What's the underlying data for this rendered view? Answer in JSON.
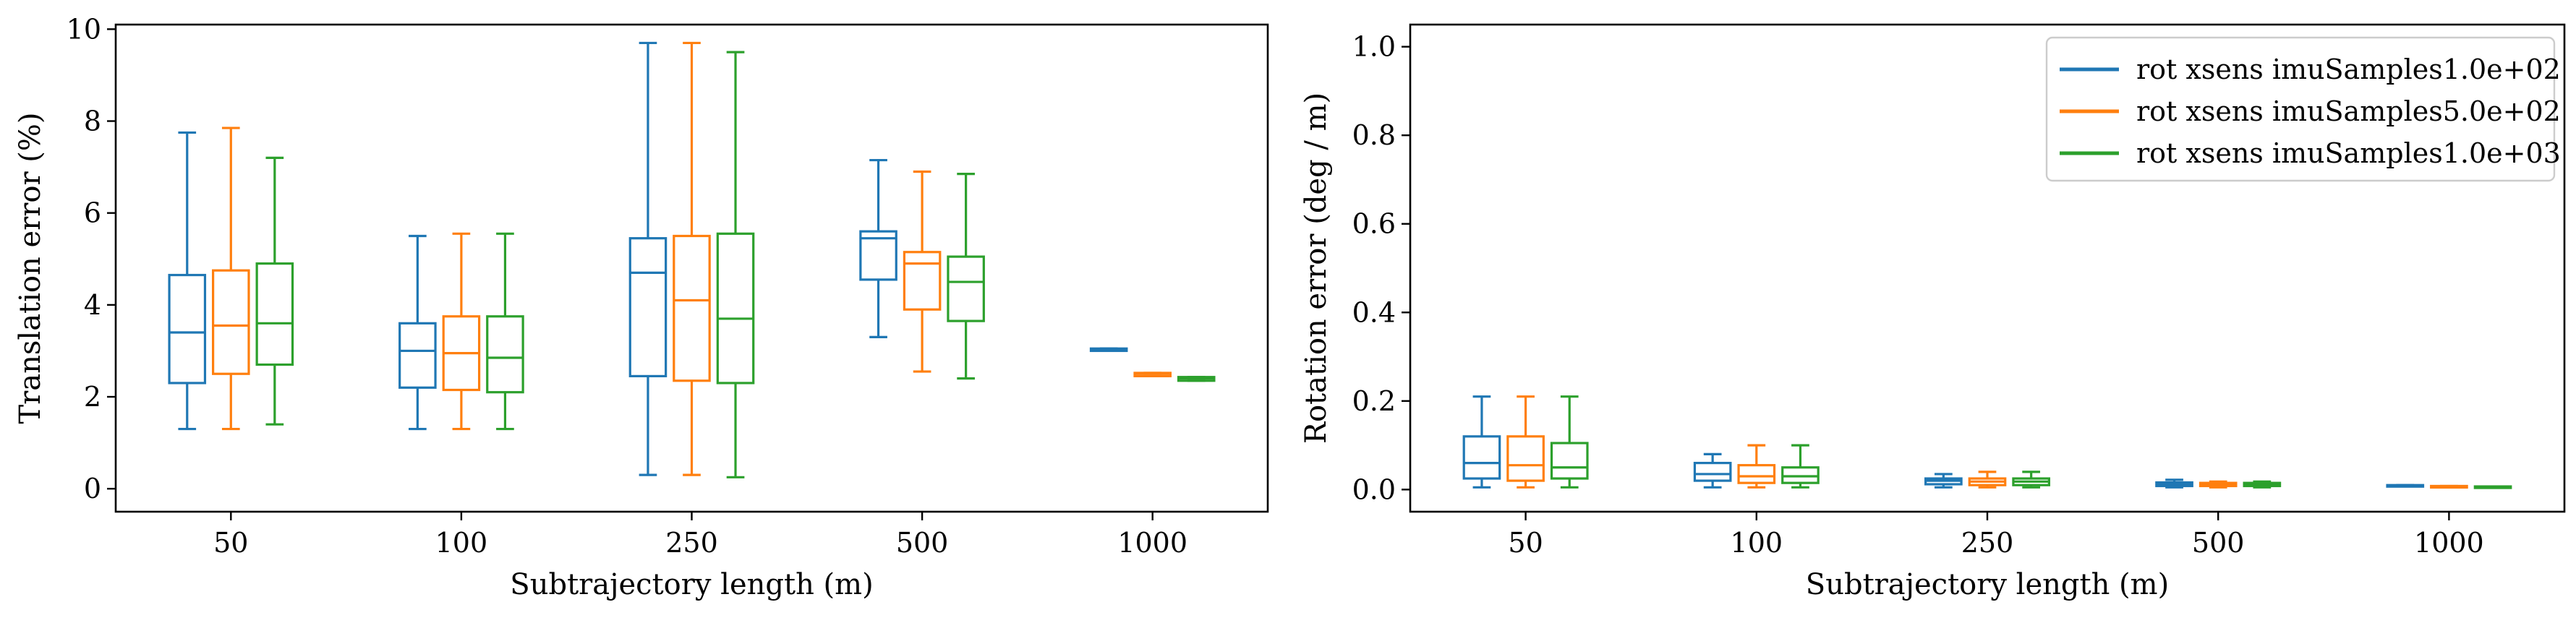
{
  "colors": {
    "series1": "#1f77b4",
    "series2": "#ff7f0e",
    "series3": "#2ca02c"
  },
  "legend": {
    "entries": [
      "rot xsens imuSamples1.0e+02",
      "rot xsens imuSamples5.0e+02",
      "rot xsens imuSamples1.0e+03"
    ],
    "placement": "top-right of right panel"
  },
  "chart_data": [
    {
      "type": "box",
      "title": "",
      "xlabel": "Subtrajectory length (m)",
      "ylabel": "Translation error (%)",
      "ylim": [
        -0.5,
        10.1
      ],
      "yticks": [
        0,
        2,
        4,
        6,
        8,
        10
      ],
      "categories": [
        "50",
        "100",
        "250",
        "500",
        "1000"
      ],
      "grid": false,
      "series": [
        {
          "boxes": [
            {
              "whislo": 1.3,
              "q1": 2.3,
              "med": 3.4,
              "q3": 4.65,
              "whishi": 7.75
            },
            {
              "whislo": 1.3,
              "q1": 2.2,
              "med": 3.0,
              "q3": 3.6,
              "whishi": 5.5
            },
            {
              "whislo": 0.3,
              "q1": 2.45,
              "med": 4.7,
              "q3": 5.45,
              "whishi": 9.7
            },
            {
              "whislo": 3.3,
              "q1": 4.55,
              "med": 5.45,
              "q3": 5.6,
              "whishi": 7.15
            },
            {
              "whislo": 3.0,
              "q1": 3.0,
              "med": 3.02,
              "q3": 3.05,
              "whishi": 3.05
            }
          ]
        },
        {
          "boxes": [
            {
              "whislo": 1.3,
              "q1": 2.5,
              "med": 3.55,
              "q3": 4.75,
              "whishi": 7.85
            },
            {
              "whislo": 1.3,
              "q1": 2.15,
              "med": 2.95,
              "q3": 3.75,
              "whishi": 5.55
            },
            {
              "whislo": 0.3,
              "q1": 2.35,
              "med": 4.1,
              "q3": 5.5,
              "whishi": 9.7
            },
            {
              "whislo": 2.55,
              "q1": 3.9,
              "med": 4.9,
              "q3": 5.15,
              "whishi": 6.9
            },
            {
              "whislo": 2.45,
              "q1": 2.45,
              "med": 2.5,
              "q3": 2.52,
              "whishi": 2.52
            }
          ]
        },
        {
          "boxes": [
            {
              "whislo": 1.4,
              "q1": 2.7,
              "med": 3.6,
              "q3": 4.9,
              "whishi": 7.2
            },
            {
              "whislo": 1.3,
              "q1": 2.1,
              "med": 2.85,
              "q3": 3.75,
              "whishi": 5.55
            },
            {
              "whislo": 0.25,
              "q1": 2.3,
              "med": 3.7,
              "q3": 5.55,
              "whishi": 9.5
            },
            {
              "whislo": 2.4,
              "q1": 3.65,
              "med": 4.5,
              "q3": 5.05,
              "whishi": 6.85
            },
            {
              "whislo": 2.35,
              "q1": 2.35,
              "med": 2.4,
              "q3": 2.43,
              "whishi": 2.43
            }
          ]
        }
      ]
    },
    {
      "type": "box",
      "title": "",
      "xlabel": "Subtrajectory length (m)",
      "ylabel": "Rotation error (deg / m)",
      "ylim": [
        -0.05,
        1.05
      ],
      "yticks": [
        0.0,
        0.2,
        0.4,
        0.6,
        0.8,
        1.0
      ],
      "categories": [
        "50",
        "100",
        "250",
        "500",
        "1000"
      ],
      "grid": false,
      "legend": "top-right",
      "series": [
        {
          "name": "rot xsens imuSamples1.0e+02",
          "boxes": [
            {
              "whislo": 0.005,
              "q1": 0.025,
              "med": 0.06,
              "q3": 0.12,
              "whishi": 0.21
            },
            {
              "whislo": 0.005,
              "q1": 0.02,
              "med": 0.035,
              "q3": 0.06,
              "whishi": 0.08
            },
            {
              "whislo": 0.005,
              "q1": 0.012,
              "med": 0.02,
              "q3": 0.025,
              "whishi": 0.035
            },
            {
              "whislo": 0.005,
              "q1": 0.008,
              "med": 0.012,
              "q3": 0.016,
              "whishi": 0.022
            },
            {
              "whislo": 0.008,
              "q1": 0.008,
              "med": 0.009,
              "q3": 0.01,
              "whishi": 0.01
            }
          ]
        },
        {
          "name": "rot xsens imuSamples5.0e+02",
          "boxes": [
            {
              "whislo": 0.005,
              "q1": 0.02,
              "med": 0.055,
              "q3": 0.12,
              "whishi": 0.21
            },
            {
              "whislo": 0.005,
              "q1": 0.015,
              "med": 0.03,
              "q3": 0.055,
              "whishi": 0.1
            },
            {
              "whislo": 0.005,
              "q1": 0.01,
              "med": 0.018,
              "q3": 0.025,
              "whishi": 0.04
            },
            {
              "whislo": 0.005,
              "q1": 0.008,
              "med": 0.012,
              "q3": 0.015,
              "whishi": 0.018
            },
            {
              "whislo": 0.006,
              "q1": 0.006,
              "med": 0.007,
              "q3": 0.008,
              "whishi": 0.008
            }
          ]
        },
        {
          "name": "rot xsens imuSamples1.0e+03",
          "boxes": [
            {
              "whislo": 0.005,
              "q1": 0.025,
              "med": 0.05,
              "q3": 0.105,
              "whishi": 0.21
            },
            {
              "whislo": 0.005,
              "q1": 0.015,
              "med": 0.03,
              "q3": 0.05,
              "whishi": 0.1
            },
            {
              "whislo": 0.005,
              "q1": 0.01,
              "med": 0.018,
              "q3": 0.025,
              "whishi": 0.04
            },
            {
              "whislo": 0.005,
              "q1": 0.008,
              "med": 0.012,
              "q3": 0.015,
              "whishi": 0.018
            },
            {
              "whislo": 0.005,
              "q1": 0.005,
              "med": 0.006,
              "q3": 0.007,
              "whishi": 0.007
            }
          ]
        }
      ]
    }
  ]
}
